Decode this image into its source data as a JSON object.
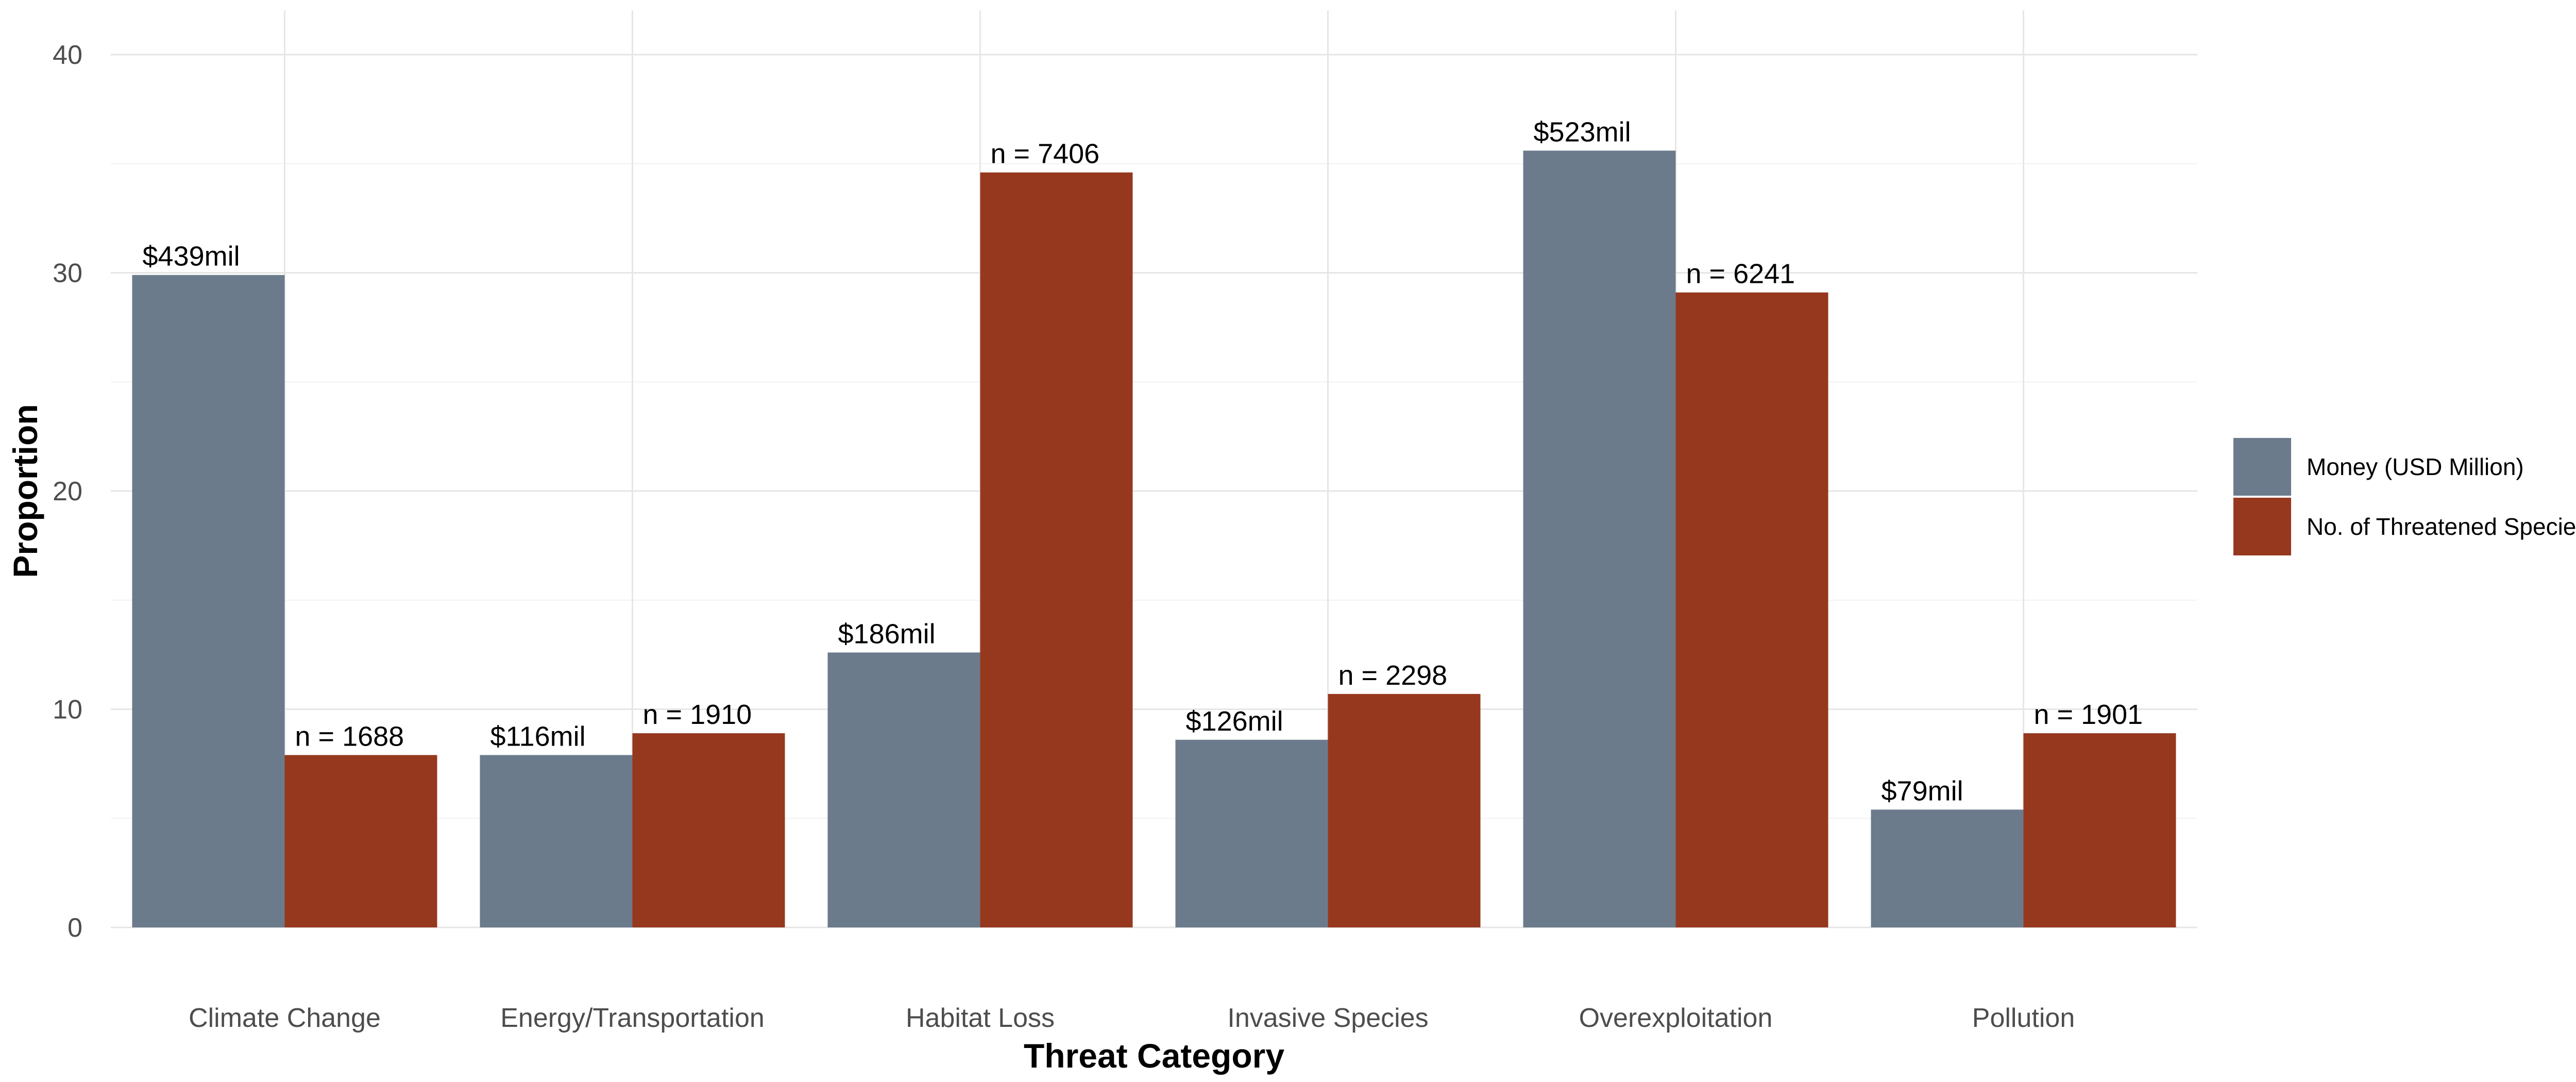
{
  "chart_data": {
    "type": "bar",
    "xlabel": "Threat Category",
    "ylabel": "Proportion",
    "ylim": [
      0,
      40
    ],
    "yticks": [
      "0",
      "10",
      "20",
      "30",
      "40"
    ],
    "grid": true,
    "legend_position": "right",
    "categories": [
      "Climate Change",
      "Energy/Transportation",
      "Habitat Loss",
      "Invasive Species",
      "Overexploitation",
      "Pollution"
    ],
    "series": [
      {
        "name": "Money (USD Million)",
        "color": "#6b7b8c",
        "values": [
          29.9,
          7.9,
          12.6,
          8.6,
          35.6,
          5.4
        ],
        "labels": [
          "$439mil",
          "$116mil",
          "$186mil",
          "$126mil",
          "$523mil",
          "$79mil"
        ]
      },
      {
        "name": "No. of Threatened Species",
        "color": "#96381e",
        "values": [
          7.9,
          8.9,
          34.6,
          10.7,
          29.1,
          8.9
        ],
        "labels": [
          "n = 1688",
          "n = 1910",
          "n = 7406",
          "n = 2298",
          "n = 6241",
          "n = 1901"
        ]
      }
    ]
  }
}
